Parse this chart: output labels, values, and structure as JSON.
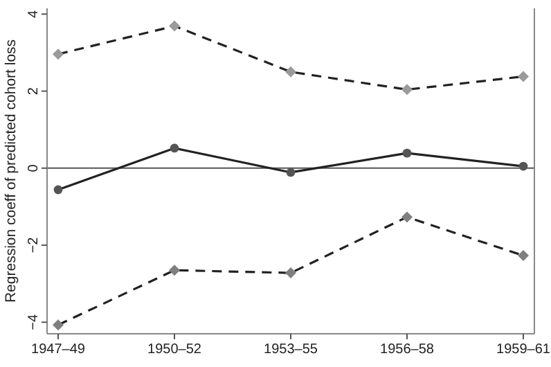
{
  "chart_data": {
    "type": "line",
    "ylabel": "Regression coeff of predicted cohort loss",
    "categories": [
      "1947–49",
      "1950–52",
      "1953–55",
      "1956–58",
      "1959–61"
    ],
    "ylim": [
      -4.3,
      4.15
    ],
    "yticks": [
      {
        "value": -4,
        "label": "−4"
      },
      {
        "value": -2,
        "label": "−2"
      },
      0,
      2,
      4
    ],
    "grid": false,
    "series": [
      {
        "color": "#9a9a9a",
        "marker": "diamond",
        "line_style": "dashed",
        "values": [
          2.96,
          3.69,
          2.5,
          2.04,
          2.38
        ]
      },
      {
        "color": "#555555",
        "marker": "circle",
        "line_style": "solid",
        "values": [
          -0.56,
          0.52,
          -0.11,
          0.39,
          0.05
        ]
      },
      {
        "color": "#7f7f7f",
        "marker": "diamond",
        "line_style": "dashed",
        "values": [
          -4.07,
          -2.65,
          -2.72,
          -1.27,
          -2.27
        ]
      }
    ],
    "ref_lines": [
      {
        "axis": "y",
        "value": 0,
        "color": "#555555"
      }
    ]
  }
}
